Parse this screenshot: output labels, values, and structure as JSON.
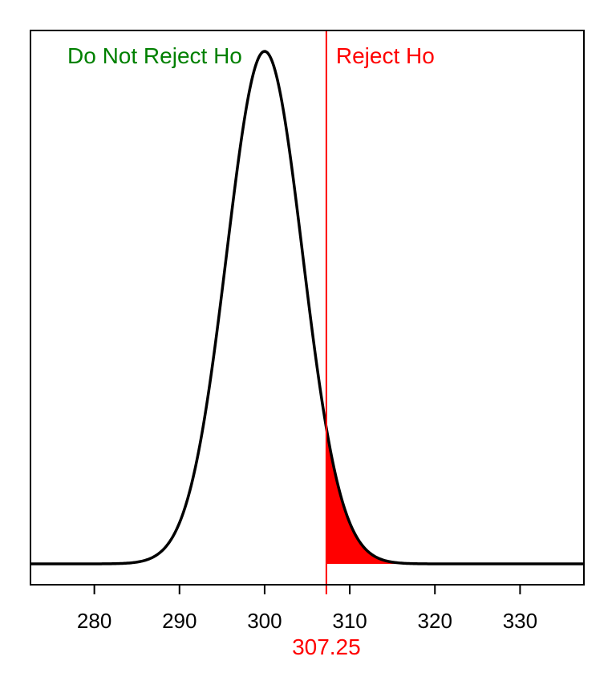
{
  "chart_data": {
    "type": "area",
    "title": "",
    "xlabel": "",
    "ylabel": "",
    "distribution": {
      "kind": "normal",
      "mean": 300,
      "sd": 4.45
    },
    "xlim": [
      272.5,
      337.5
    ],
    "x_ticks": [
      280,
      290,
      300,
      310,
      320,
      330
    ],
    "critical_value": 307.25,
    "critical_label": "307.25",
    "tail": "right",
    "regions": {
      "do_not_reject": {
        "label": "Do Not Reject Ho",
        "color": "#008000"
      },
      "reject": {
        "label": "Reject Ho",
        "color": "#ff0000"
      }
    },
    "curve_color": "#000000",
    "shade_color": "#ff0000",
    "critical_line_color": "#ff0000",
    "grid": false,
    "y_axis_shown": false
  }
}
